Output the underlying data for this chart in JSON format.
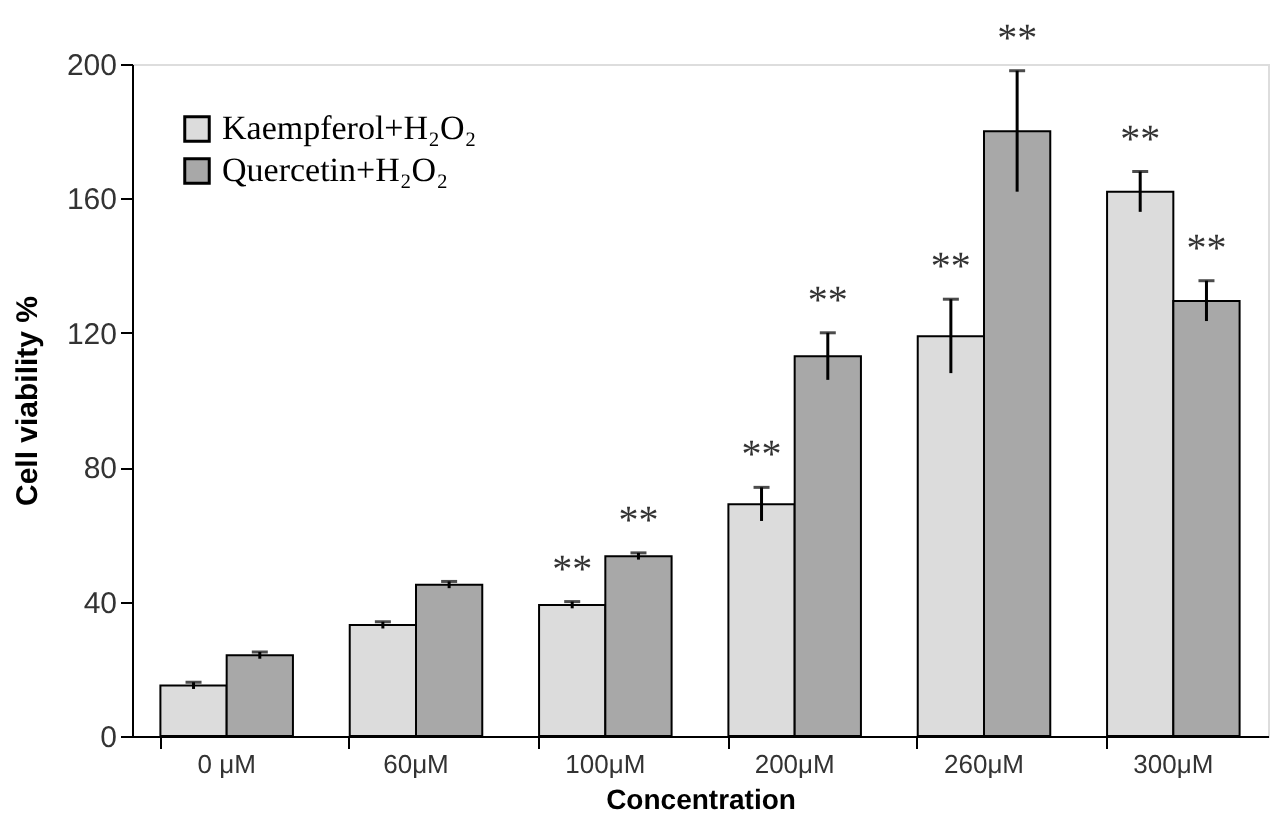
{
  "chart_data": {
    "type": "bar",
    "xlabel": "Concentration",
    "ylabel": "Cell viability %",
    "categories": [
      "0 μM",
      "60μM",
      "100μM",
      "200μM",
      "260μM",
      "300μM"
    ],
    "series": [
      {
        "name": "Kaempferol+H₂O₂",
        "color": "#dcdcdc",
        "values": [
          15,
          33,
          39,
          69,
          119,
          162
        ],
        "errors": [
          1,
          1,
          1,
          5,
          11,
          6
        ],
        "value_labels": [
          null,
          null,
          "**",
          "**",
          "**",
          "**"
        ]
      },
      {
        "name": "Quercetin+H₂O₂",
        "color": "#a8a8a8",
        "values": [
          24,
          45,
          53.5,
          113,
          180,
          129.5
        ],
        "errors": [
          1,
          1,
          1,
          7,
          18,
          6
        ],
        "value_labels": [
          null,
          null,
          "**",
          "**",
          "**",
          "**"
        ]
      }
    ],
    "ylim": [
      0,
      200
    ],
    "yticks": [
      0,
      40,
      80,
      120,
      160,
      200
    ],
    "grid": false,
    "legend": "top left"
  }
}
